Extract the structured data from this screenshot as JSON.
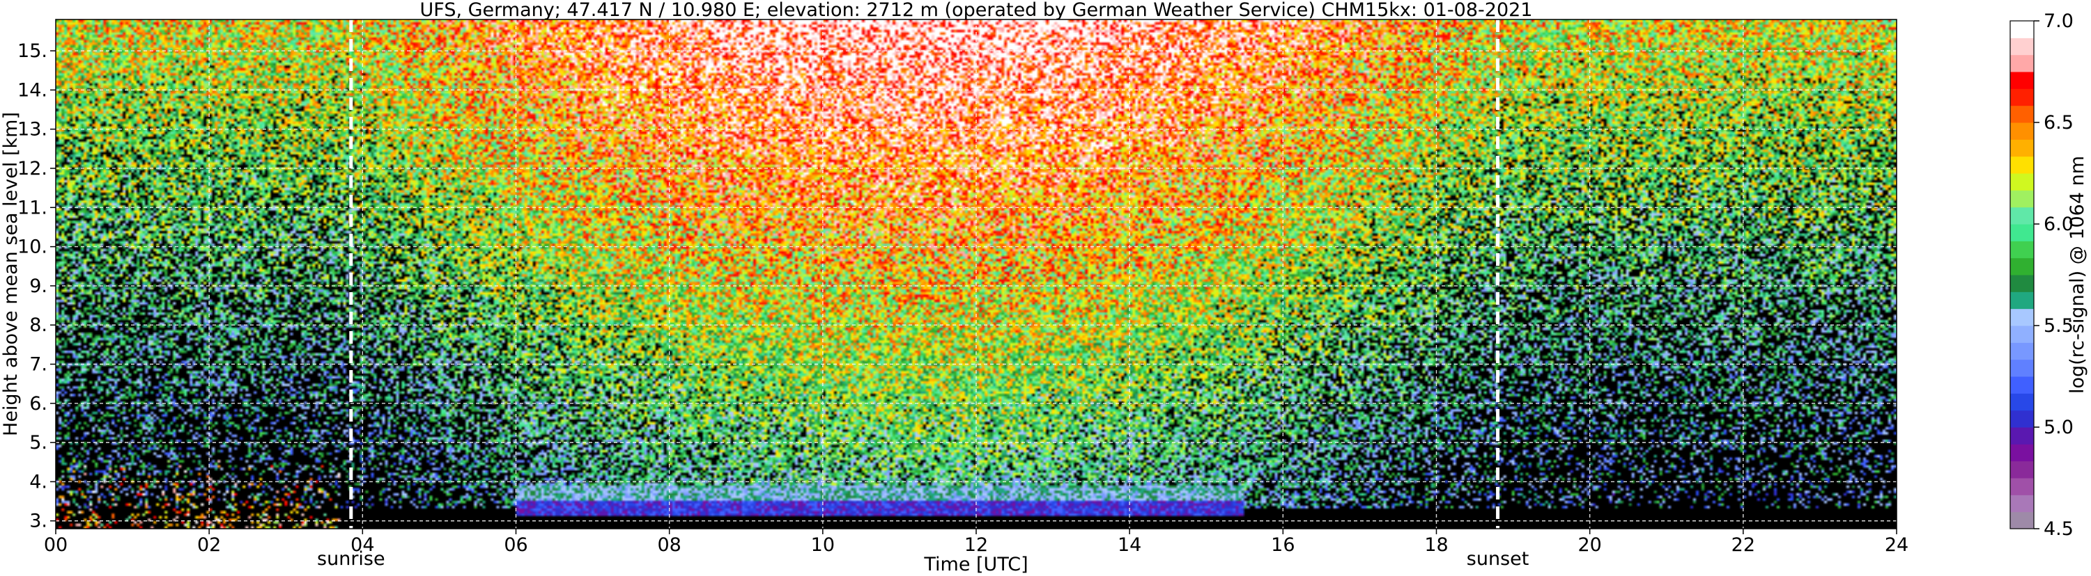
{
  "chart_data": {
    "type": "heatmap",
    "title": "UFS, Germany; 47.417 N / 10.980 E; elevation: 2712 m  (operated by German Weather Service)    CHM15kx: 01-08-2021",
    "xlabel": "Time [UTC]",
    "ylabel": "Height above mean sea level [km]",
    "xlim": [
      0,
      24
    ],
    "ylim": [
      2.8,
      15.8
    ],
    "x_ticks": [
      0,
      2,
      4,
      6,
      8,
      10,
      12,
      14,
      16,
      18,
      20,
      22,
      24
    ],
    "x_tick_labels": [
      "00",
      "02",
      "04",
      "06",
      "08",
      "10",
      "12",
      "14",
      "16",
      "18",
      "20",
      "22",
      "24"
    ],
    "y_ticks": [
      3,
      4,
      5,
      6,
      7,
      8,
      9,
      10,
      11,
      12,
      13,
      14,
      15
    ],
    "y_tick_labels": [
      "3.",
      "4.",
      "5.",
      "6.",
      "7.",
      "8.",
      "9.",
      "10.",
      "11.",
      "12.",
      "13.",
      "14.",
      "15."
    ],
    "grid": true,
    "background_color": "#000000",
    "annotations": [
      {
        "label": "sunrise",
        "x": 3.85
      },
      {
        "label": "sunset",
        "x": 18.8
      }
    ],
    "colorbar": {
      "label": "log(rc-signal) @ 1064 nm",
      "range": [
        4.5,
        7.0
      ],
      "ticks": [
        4.5,
        5.0,
        5.5,
        6.0,
        6.5,
        7.0
      ],
      "tick_labels": [
        "4.5",
        "5.0",
        "5.5",
        "6.0",
        "6.5",
        "7.0"
      ],
      "colors": [
        "#9e8aa8",
        "#a978b8",
        "#a050a8",
        "#8a2a9a",
        "#7a10a0",
        "#5a18b0",
        "#3030d0",
        "#2848e8",
        "#4060ff",
        "#6080ff",
        "#7898ff",
        "#90b0ff",
        "#a8c8ff",
        "#20a880",
        "#208a40",
        "#30b030",
        "#40d050",
        "#40e890",
        "#60e8a8",
        "#a0f060",
        "#d0f820",
        "#ffe000",
        "#ffb000",
        "#ff9000",
        "#ff6000",
        "#ff2000",
        "#ff0000",
        "#ffa8a8",
        "#ffd0d0",
        "#ffffff"
      ]
    }
  }
}
